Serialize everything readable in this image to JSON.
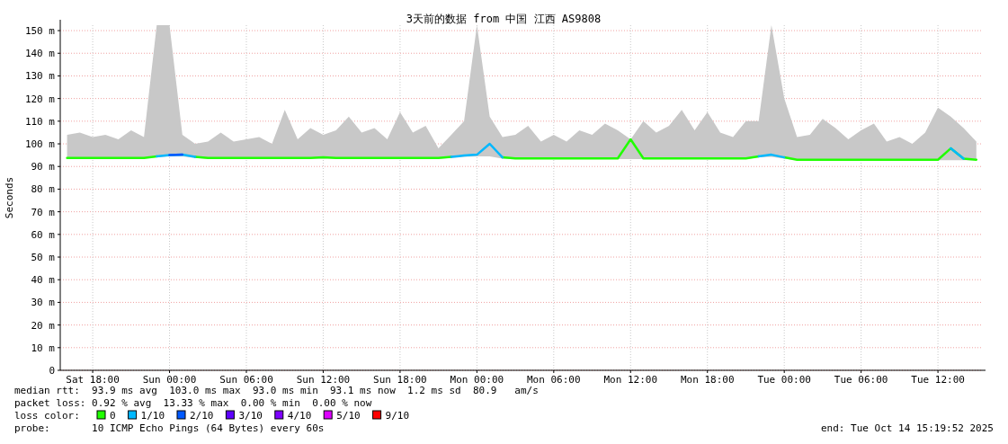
{
  "chart_data": {
    "type": "line",
    "title": "3天前的数据 from 中国 江西 AS9808",
    "ylabel": "Seconds",
    "legend_title": "loss color:",
    "legend": "bottom",
    "grid": true,
    "marker": "none",
    "line_style": "solid",
    "x": [
      "2025-10-11T16:00",
      "2025-10-11T17:00",
      "2025-10-11T18:00",
      "2025-10-11T19:00",
      "2025-10-11T20:00",
      "2025-10-11T21:00",
      "2025-10-11T22:00",
      "2025-10-11T23:00",
      "2025-10-12T00:00",
      "2025-10-12T01:00",
      "2025-10-12T02:00",
      "2025-10-12T03:00",
      "2025-10-12T04:00",
      "2025-10-12T05:00",
      "2025-10-12T06:00",
      "2025-10-12T07:00",
      "2025-10-12T08:00",
      "2025-10-12T09:00",
      "2025-10-12T10:00",
      "2025-10-12T11:00",
      "2025-10-12T12:00",
      "2025-10-12T13:00",
      "2025-10-12T14:00",
      "2025-10-12T15:00",
      "2025-10-12T16:00",
      "2025-10-12T17:00",
      "2025-10-12T18:00",
      "2025-10-12T19:00",
      "2025-10-12T20:00",
      "2025-10-12T21:00",
      "2025-10-12T22:00",
      "2025-10-12T23:00",
      "2025-10-13T00:00",
      "2025-10-13T01:00",
      "2025-10-13T02:00",
      "2025-10-13T03:00",
      "2025-10-13T04:00",
      "2025-10-13T05:00",
      "2025-10-13T06:00",
      "2025-10-13T07:00",
      "2025-10-13T08:00",
      "2025-10-13T09:00",
      "2025-10-13T10:00",
      "2025-10-13T11:00",
      "2025-10-13T12:00",
      "2025-10-13T13:00",
      "2025-10-13T14:00",
      "2025-10-13T15:00",
      "2025-10-13T16:00",
      "2025-10-13T17:00",
      "2025-10-13T18:00",
      "2025-10-13T19:00",
      "2025-10-13T20:00",
      "2025-10-13T21:00",
      "2025-10-13T22:00",
      "2025-10-13T23:00",
      "2025-10-14T00:00",
      "2025-10-14T01:00",
      "2025-10-14T02:00",
      "2025-10-14T03:00",
      "2025-10-14T04:00",
      "2025-10-14T05:00",
      "2025-10-14T06:00",
      "2025-10-14T07:00",
      "2025-10-14T08:00",
      "2025-10-14T09:00",
      "2025-10-14T10:00",
      "2025-10-14T11:00",
      "2025-10-14T12:00",
      "2025-10-14T13:00",
      "2025-10-14T14:00",
      "2025-10-14T15:00"
    ],
    "xlim": [
      "2025-10-11T15:28",
      "2025-10-14T15:26"
    ],
    "xticks": [
      {
        "value": "2025-10-11T18:00",
        "label": "Sat 18:00"
      },
      {
        "value": "2025-10-12T00:00",
        "label": "Sun 00:00"
      },
      {
        "value": "2025-10-12T06:00",
        "label": "Sun 06:00"
      },
      {
        "value": "2025-10-12T12:00",
        "label": "Sun 12:00"
      },
      {
        "value": "2025-10-12T18:00",
        "label": "Sun 18:00"
      },
      {
        "value": "2025-10-13T00:00",
        "label": "Mon 00:00"
      },
      {
        "value": "2025-10-13T06:00",
        "label": "Mon 06:00"
      },
      {
        "value": "2025-10-13T12:00",
        "label": "Mon 12:00"
      },
      {
        "value": "2025-10-13T18:00",
        "label": "Mon 18:00"
      },
      {
        "value": "2025-10-14T00:00",
        "label": "Tue 00:00"
      },
      {
        "value": "2025-10-14T06:00",
        "label": "Tue 06:00"
      },
      {
        "value": "2025-10-14T12:00",
        "label": "Tue 12:00"
      }
    ],
    "ylim": [
      0,
      152.4
    ],
    "yticks": [
      0,
      {
        "value": 10,
        "label": "10 m"
      },
      {
        "value": 20,
        "label": "20 m"
      },
      {
        "value": 30,
        "label": "30 m"
      },
      {
        "value": 40,
        "label": "40 m"
      },
      {
        "value": 50,
        "label": "50 m"
      },
      {
        "value": 60,
        "label": "60 m"
      },
      {
        "value": 70,
        "label": "70 m"
      },
      {
        "value": 80,
        "label": "80 m"
      },
      {
        "value": 90,
        "label": "90 m"
      },
      {
        "value": 100,
        "label": "100 m"
      },
      {
        "value": 110,
        "label": "110 m"
      },
      {
        "value": 120,
        "label": "120 m"
      },
      {
        "value": 130,
        "label": "130 m"
      },
      {
        "value": 140,
        "label": "140 m"
      },
      {
        "value": 150,
        "label": "150 m"
      }
    ],
    "series": [
      {
        "name": "0",
        "color": "#20ff00",
        "values": [
          93.8,
          93.8,
          93.8,
          93.8,
          93.8,
          93.8,
          93.8,
          94.5,
          null,
          null,
          94.2,
          93.8,
          93.8,
          93.8,
          93.8,
          93.8,
          93.8,
          93.8,
          93.8,
          93.8,
          94,
          93.8,
          93.8,
          93.8,
          93.8,
          93.8,
          93.8,
          93.8,
          93.8,
          93.8,
          94.2,
          null,
          null,
          null,
          94,
          93.6,
          93.6,
          93.6,
          93.6,
          93.6,
          93.6,
          93.6,
          93.6,
          93.6,
          102,
          93.6,
          93.6,
          93.6,
          93.6,
          93.6,
          93.6,
          93.6,
          93.6,
          93.6,
          94.5,
          null,
          94,
          93,
          93,
          93,
          93,
          93,
          93,
          93,
          93,
          93,
          93,
          93,
          93,
          98,
          93.5,
          93
        ],
        "lower": [
          93.5,
          93.5,
          93.5,
          93.5,
          93.5,
          93.5,
          93.5,
          94,
          94.5,
          94.5,
          93.8,
          93.5,
          93.5,
          93.5,
          93.5,
          93.5,
          93.5,
          93.5,
          93.5,
          93.5,
          93.5,
          93.5,
          93.5,
          93.5,
          93.5,
          93.5,
          93.5,
          93.5,
          93.5,
          93.5,
          93.8,
          94.2,
          94.5,
          94.5,
          93.5,
          93.3,
          93.3,
          93.3,
          93.3,
          93.3,
          93.3,
          93.3,
          93.3,
          93.3,
          93.3,
          93.3,
          93.3,
          93.3,
          93.3,
          93.3,
          93.3,
          93.3,
          93.3,
          93.3,
          94,
          94.2,
          93.5,
          92.8,
          92.8,
          92.8,
          92.8,
          92.8,
          92.8,
          92.8,
          92.8,
          92.8,
          92.8,
          92.8,
          92.8,
          92.8,
          92.8,
          92.8
        ],
        "upper": [
          104,
          105,
          103,
          104,
          102,
          106,
          103,
          152.4,
          152.4,
          104,
          100,
          101,
          105,
          101,
          102,
          103,
          100,
          115,
          102,
          107,
          104,
          106,
          112,
          105,
          107,
          102,
          114,
          105,
          108,
          98,
          104,
          110,
          152.4,
          112,
          103,
          104,
          108,
          101,
          104,
          101,
          106,
          104,
          109,
          106,
          102,
          110,
          105,
          108,
          115,
          106,
          114,
          105,
          103,
          110,
          110,
          152.4,
          120,
          103,
          104,
          111,
          107,
          102,
          106,
          109,
          101,
          103,
          100,
          105,
          116,
          112,
          107,
          101
        ]
      },
      {
        "name": "1/10",
        "color": "#00b8ff",
        "values": [
          null,
          null,
          null,
          null,
          null,
          null,
          null,
          94.5,
          95,
          95.2,
          94.2,
          null,
          null,
          null,
          null,
          null,
          null,
          null,
          null,
          null,
          null,
          null,
          null,
          null,
          null,
          null,
          null,
          null,
          null,
          null,
          94.2,
          94.8,
          95.2,
          100,
          94,
          null,
          null,
          null,
          null,
          null,
          null,
          null,
          null,
          null,
          null,
          null,
          null,
          null,
          null,
          null,
          null,
          null,
          null,
          null,
          94.5,
          95.2,
          94,
          null,
          null,
          null,
          null,
          null,
          null,
          null,
          null,
          null,
          null,
          null,
          null,
          98,
          93.5,
          null
        ]
      },
      {
        "name": "2/10",
        "color": "#0059ff",
        "values": [
          null,
          null,
          null,
          null,
          null,
          null,
          null,
          null,
          95,
          95.2,
          null,
          null,
          null,
          null,
          null,
          null,
          null,
          null,
          null,
          null,
          null,
          null,
          null,
          null,
          null,
          null,
          null,
          null,
          null,
          null,
          null,
          null,
          null,
          null,
          null,
          null,
          null,
          null,
          null,
          null,
          null,
          null,
          null,
          null,
          null,
          null,
          null,
          null,
          null,
          null,
          null,
          null,
          null,
          null,
          null,
          null,
          null,
          null,
          null,
          null,
          null,
          null,
          null,
          null,
          null,
          null,
          null,
          null,
          null,
          null,
          null,
          null
        ]
      },
      {
        "name": "3/10",
        "color": "#5e00ff",
        "values": [
          null,
          null,
          null,
          null,
          null,
          null,
          null,
          null,
          null,
          null,
          null,
          null,
          null,
          null,
          null,
          null,
          null,
          null,
          null,
          null,
          null,
          null,
          null,
          null,
          null,
          null,
          null,
          null,
          null,
          null,
          null,
          null,
          null,
          null,
          null,
          null,
          null,
          null,
          null,
          null,
          null,
          null,
          null,
          null,
          null,
          null,
          null,
          null,
          null,
          null,
          null,
          null,
          null,
          null,
          null,
          null,
          null,
          null,
          null,
          null,
          null,
          null,
          null,
          null,
          null,
          null,
          null,
          null,
          null,
          null,
          null,
          null
        ]
      },
      {
        "name": "4/10",
        "color": "#7e00ff",
        "values": [
          null,
          null,
          null,
          null,
          null,
          null,
          null,
          null,
          null,
          null,
          null,
          null,
          null,
          null,
          null,
          null,
          null,
          null,
          null,
          null,
          null,
          null,
          null,
          null,
          null,
          null,
          null,
          null,
          null,
          null,
          null,
          null,
          null,
          null,
          null,
          null,
          null,
          null,
          null,
          null,
          null,
          null,
          null,
          null,
          null,
          null,
          null,
          null,
          null,
          null,
          null,
          null,
          null,
          null,
          null,
          null,
          null,
          null,
          null,
          null,
          null,
          null,
          null,
          null,
          null,
          null,
          null,
          null,
          null,
          null,
          null,
          null
        ]
      },
      {
        "name": "5/10",
        "color": "#dd00ff",
        "values": [
          null,
          null,
          null,
          null,
          null,
          null,
          null,
          null,
          null,
          null,
          null,
          null,
          null,
          null,
          null,
          null,
          null,
          null,
          null,
          null,
          null,
          null,
          null,
          null,
          null,
          null,
          null,
          null,
          null,
          null,
          null,
          null,
          null,
          null,
          null,
          null,
          null,
          null,
          null,
          null,
          null,
          null,
          null,
          null,
          null,
          null,
          null,
          null,
          null,
          null,
          null,
          null,
          null,
          null,
          null,
          null,
          null,
          null,
          null,
          null,
          null,
          null,
          null,
          null,
          null,
          null,
          null,
          null,
          null,
          null,
          null,
          null
        ]
      },
      {
        "name": "9/10",
        "color": "#ff0000",
        "values": [
          null,
          null,
          null,
          null,
          null,
          null,
          null,
          null,
          null,
          null,
          null,
          null,
          null,
          null,
          null,
          null,
          null,
          null,
          null,
          null,
          null,
          null,
          null,
          null,
          null,
          null,
          null,
          null,
          null,
          null,
          null,
          null,
          null,
          null,
          null,
          null,
          null,
          null,
          null,
          null,
          null,
          null,
          null,
          null,
          null,
          null,
          null,
          null,
          null,
          null,
          null,
          null,
          null,
          null,
          null,
          null,
          null,
          null,
          null,
          null,
          null,
          null,
          null,
          null,
          null,
          null,
          null,
          null,
          null,
          null,
          null,
          null
        ]
      }
    ],
    "annotations": [
      "median rtt:  93.9 ms avg  103.0 ms max  93.0 ms min  93.1 ms now  1.2 ms sd  80.9   am/s",
      "packet loss: 0.92 % avg  13.33 % max  0.00 % min  0.00 % now",
      "probe:       10 ICMP Echo Pings (64 Bytes) every 60s",
      "end: Tue Oct 14 15:19:52 2025"
    ]
  }
}
